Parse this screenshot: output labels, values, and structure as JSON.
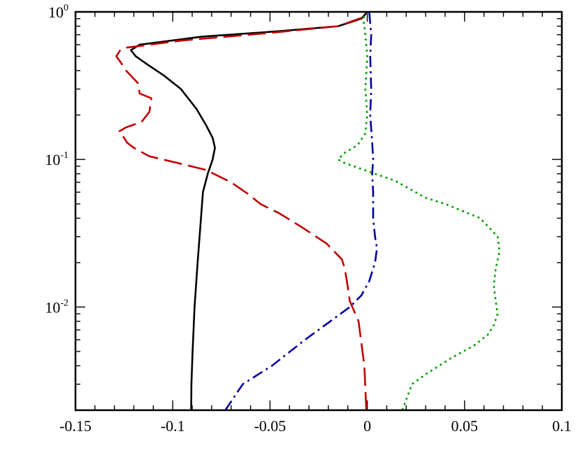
{
  "chart_data": {
    "type": "line",
    "title": "",
    "xlabel": "",
    "ylabel": "",
    "xlim": [
      -0.15,
      0.1
    ],
    "ylim": [
      0.002,
      1
    ],
    "y_scale": "log",
    "grid": false,
    "legend": "none",
    "x_ticks": [
      {
        "value": -0.15,
        "label": "-0.15"
      },
      {
        "value": -0.1,
        "label": "-0.1"
      },
      {
        "value": -0.05,
        "label": "-0.05"
      },
      {
        "value": 0,
        "label": "0"
      },
      {
        "value": 0.05,
        "label": "0.05"
      },
      {
        "value": 0.1,
        "label": "0.1"
      }
    ],
    "y_ticks": [
      {
        "value": 0.01,
        "base": "10",
        "exp": "-2"
      },
      {
        "value": 0.1,
        "base": "10",
        "exp": "-1"
      },
      {
        "value": 1,
        "base": "10",
        "exp": "0"
      }
    ],
    "series": [
      {
        "style": "solid",
        "color": "#000000",
        "points": [
          [
            -0.0905,
            0.002
          ],
          [
            -0.0904,
            0.003
          ],
          [
            -0.0898,
            0.005
          ],
          [
            -0.0888,
            0.01
          ],
          [
            -0.0872,
            0.02
          ],
          [
            -0.0855,
            0.04
          ],
          [
            -0.0845,
            0.06
          ],
          [
            -0.082,
            0.08
          ],
          [
            -0.0795,
            0.1
          ],
          [
            -0.0783,
            0.12
          ],
          [
            -0.0795,
            0.14
          ],
          [
            -0.0828,
            0.17
          ],
          [
            -0.0878,
            0.22
          ],
          [
            -0.0958,
            0.3
          ],
          [
            -0.1045,
            0.37
          ],
          [
            -0.113,
            0.44
          ],
          [
            -0.119,
            0.5
          ],
          [
            -0.1215,
            0.55
          ],
          [
            -0.117,
            0.6
          ],
          [
            -0.085,
            0.68
          ],
          [
            -0.045,
            0.74
          ],
          [
            -0.015,
            0.8
          ],
          [
            -0.003,
            0.9
          ],
          [
            0.0,
            1.0
          ]
        ]
      },
      {
        "style": "dashed",
        "color": "#c00000",
        "points": [
          [
            -0.0005,
            0.002
          ],
          [
            -0.0015,
            0.004
          ],
          [
            -0.0045,
            0.008
          ],
          [
            -0.009,
            0.011
          ],
          [
            -0.0105,
            0.015
          ],
          [
            -0.0115,
            0.018
          ],
          [
            -0.013,
            0.021
          ],
          [
            -0.021,
            0.027
          ],
          [
            -0.034,
            0.035
          ],
          [
            -0.045,
            0.043
          ],
          [
            -0.055,
            0.05
          ],
          [
            -0.061,
            0.058
          ],
          [
            -0.07,
            0.07
          ],
          [
            -0.083,
            0.085
          ],
          [
            -0.098,
            0.095
          ],
          [
            -0.112,
            0.105
          ],
          [
            -0.12,
            0.12
          ],
          [
            -0.1235,
            0.13
          ],
          [
            -0.125,
            0.14
          ],
          [
            -0.1275,
            0.155
          ],
          [
            -0.124,
            0.165
          ],
          [
            -0.116,
            0.18
          ],
          [
            -0.112,
            0.21
          ],
          [
            -0.111,
            0.26
          ],
          [
            -0.117,
            0.28
          ],
          [
            -0.118,
            0.33
          ],
          [
            -0.124,
            0.4
          ],
          [
            -0.1265,
            0.45
          ],
          [
            -0.129,
            0.5
          ],
          [
            -0.127,
            0.55
          ],
          [
            -0.125,
            0.57
          ],
          [
            -0.095,
            0.64
          ],
          [
            -0.05,
            0.72
          ],
          [
            -0.015,
            0.8
          ],
          [
            -0.002,
            0.92
          ],
          [
            0.0,
            1.0
          ]
        ]
      },
      {
        "style": "dashdot",
        "color": "#0000a0",
        "points": [
          [
            -0.073,
            0.002
          ],
          [
            -0.064,
            0.003
          ],
          [
            -0.049,
            0.004
          ],
          [
            -0.032,
            0.006
          ],
          [
            -0.019,
            0.008
          ],
          [
            -0.009,
            0.01
          ],
          [
            -0.003,
            0.012
          ],
          [
            0.001,
            0.015
          ],
          [
            0.004,
            0.02
          ],
          [
            0.005,
            0.025
          ],
          [
            0.004,
            0.03
          ],
          [
            0.003,
            0.04
          ],
          [
            0.003,
            0.06
          ],
          [
            0.0025,
            0.08
          ],
          [
            0.003,
            0.1
          ],
          [
            0.0025,
            0.13
          ],
          [
            0.0015,
            0.2
          ],
          [
            0.002,
            0.3
          ],
          [
            0.0015,
            0.5
          ],
          [
            0.002,
            0.7
          ],
          [
            0.001,
            1.0
          ]
        ]
      },
      {
        "style": "dotted",
        "color": "#00a000",
        "points": [
          [
            0.018,
            0.002
          ],
          [
            0.023,
            0.003
          ],
          [
            0.03,
            0.0035
          ],
          [
            0.043,
            0.0045
          ],
          [
            0.055,
            0.0055
          ],
          [
            0.062,
            0.0065
          ],
          [
            0.065,
            0.0075
          ],
          [
            0.067,
            0.009
          ],
          [
            0.066,
            0.011
          ],
          [
            0.065,
            0.014
          ],
          [
            0.066,
            0.018
          ],
          [
            0.068,
            0.024
          ],
          [
            0.067,
            0.03
          ],
          [
            0.058,
            0.04
          ],
          [
            0.04,
            0.05
          ],
          [
            0.03,
            0.055
          ],
          [
            0.022,
            0.063
          ],
          [
            0.014,
            0.072
          ],
          [
            0.004,
            0.08
          ],
          [
            -0.012,
            0.095
          ],
          [
            -0.015,
            0.1
          ],
          [
            -0.012,
            0.11
          ],
          [
            -0.005,
            0.125
          ],
          [
            -0.001,
            0.15
          ],
          [
            0.0,
            0.2
          ],
          [
            -0.001,
            0.3
          ],
          [
            0.0,
            0.5
          ],
          [
            -0.001,
            0.7
          ],
          [
            -0.002,
            0.9
          ],
          [
            -0.001,
            1.0
          ]
        ]
      }
    ]
  }
}
